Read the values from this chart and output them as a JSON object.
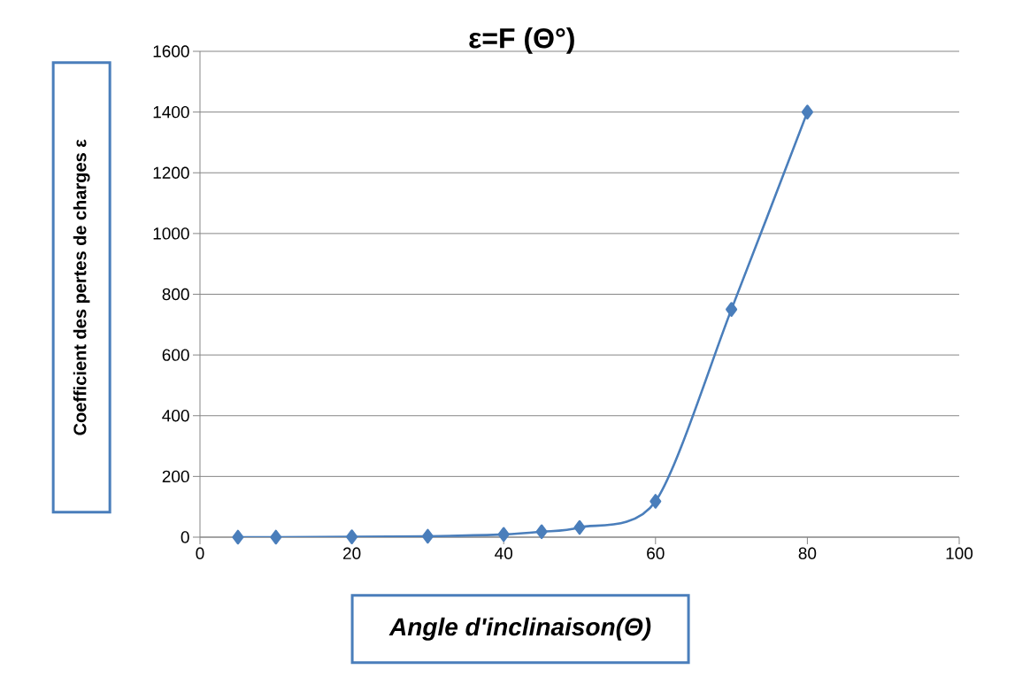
{
  "chart_data": {
    "type": "line",
    "title": "ε=F (Θ°)",
    "xlabel": "Angle d'inclinaison(Θ)",
    "ylabel": "Coefficient des pertes de charges ε",
    "x": [
      5,
      10,
      20,
      30,
      40,
      45,
      50,
      60,
      70,
      80
    ],
    "series": [
      {
        "color": "#4a7ebb",
        "values": [
          0,
          0,
          1,
          3,
          9,
          18,
          32,
          118,
          750,
          1400
        ]
      }
    ],
    "xlim": [
      0,
      100
    ],
    "xticks": [
      0,
      20,
      40,
      60,
      80,
      100
    ],
    "ylim": [
      0,
      1600
    ],
    "yticks": [
      0,
      200,
      400,
      600,
      800,
      1000,
      1200,
      1400,
      1600
    ],
    "grid": "y",
    "marker": "diamond",
    "line_style": "solid"
  }
}
